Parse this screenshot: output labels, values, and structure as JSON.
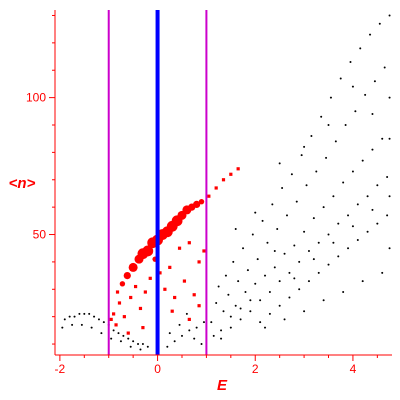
{
  "chart_data": {
    "type": "scatter",
    "title": "",
    "xlabel": "E",
    "ylabel": "<n>",
    "xlim": [
      -2.1,
      4.8
    ],
    "ylim": [
      6,
      132
    ],
    "x_ticks": [
      -2,
      0,
      2,
      4
    ],
    "y_ticks": [
      50,
      100
    ],
    "grid": false,
    "vertical_lines": [
      {
        "x": 0,
        "color": "#0000ff",
        "style": "thick"
      },
      {
        "x": -1,
        "color": "#cc00cc",
        "style": "thin"
      },
      {
        "x": 1,
        "color": "#cc00cc",
        "style": "thin"
      }
    ],
    "colors": {
      "axes": "#ff0000",
      "background_points": "#000000",
      "highlight_points": "#ff0000",
      "zero_line": "#0000ff",
      "window_lines": "#cc00cc"
    },
    "highlight_series": [
      {
        "x": -0.95,
        "y": 19,
        "size": 2
      },
      {
        "x": -0.9,
        "y": 21,
        "size": 2
      },
      {
        "x": -0.85,
        "y": 17,
        "size": 2
      },
      {
        "x": -0.82,
        "y": 29,
        "size": 2
      },
      {
        "x": -0.78,
        "y": 25,
        "size": 2
      },
      {
        "x": -0.72,
        "y": 32,
        "size": 3
      },
      {
        "x": -0.68,
        "y": 20,
        "size": 2
      },
      {
        "x": -0.62,
        "y": 35,
        "size": 4
      },
      {
        "x": -0.55,
        "y": 27,
        "size": 2
      },
      {
        "x": -0.5,
        "y": 38,
        "size": 5
      },
      {
        "x": -0.45,
        "y": 31,
        "size": 2
      },
      {
        "x": -0.38,
        "y": 41,
        "size": 5
      },
      {
        "x": -0.35,
        "y": 23,
        "size": 2
      },
      {
        "x": -0.3,
        "y": 43,
        "size": 6
      },
      {
        "x": -0.25,
        "y": 29,
        "size": 2
      },
      {
        "x": -0.2,
        "y": 44,
        "size": 6
      },
      {
        "x": -0.15,
        "y": 34,
        "size": 2
      },
      {
        "x": -0.1,
        "y": 47,
        "size": 6
      },
      {
        "x": -0.05,
        "y": 41,
        "size": 3
      },
      {
        "x": 0.0,
        "y": 48,
        "size": 6
      },
      {
        "x": 0.05,
        "y": 36,
        "size": 2
      },
      {
        "x": 0.1,
        "y": 50,
        "size": 6
      },
      {
        "x": 0.15,
        "y": 30,
        "size": 2
      },
      {
        "x": 0.2,
        "y": 51,
        "size": 6
      },
      {
        "x": 0.25,
        "y": 38,
        "size": 2
      },
      {
        "x": 0.3,
        "y": 53,
        "size": 6
      },
      {
        "x": 0.35,
        "y": 27,
        "size": 2
      },
      {
        "x": 0.4,
        "y": 55,
        "size": 6
      },
      {
        "x": 0.45,
        "y": 45,
        "size": 2
      },
      {
        "x": 0.5,
        "y": 57,
        "size": 5
      },
      {
        "x": 0.55,
        "y": 33,
        "size": 2
      },
      {
        "x": 0.6,
        "y": 59,
        "size": 5
      },
      {
        "x": 0.65,
        "y": 47,
        "size": 2
      },
      {
        "x": 0.7,
        "y": 60,
        "size": 4
      },
      {
        "x": 0.75,
        "y": 28,
        "size": 2
      },
      {
        "x": 0.8,
        "y": 61,
        "size": 4
      },
      {
        "x": 0.85,
        "y": 40,
        "size": 2
      },
      {
        "x": 0.9,
        "y": 62,
        "size": 3
      },
      {
        "x": 0.95,
        "y": 44,
        "size": 2
      },
      {
        "x": 1.05,
        "y": 64,
        "size": 2
      },
      {
        "x": 1.2,
        "y": 67,
        "size": 2
      },
      {
        "x": 1.35,
        "y": 70,
        "size": 2
      },
      {
        "x": 1.5,
        "y": 72,
        "size": 2
      },
      {
        "x": 1.65,
        "y": 74,
        "size": 2
      },
      {
        "x": -0.6,
        "y": 14,
        "size": 2
      },
      {
        "x": -0.3,
        "y": 16,
        "size": 2
      },
      {
        "x": 0.3,
        "y": 22,
        "size": 2
      },
      {
        "x": 0.65,
        "y": 19,
        "size": 2
      },
      {
        "x": 0.85,
        "y": 24,
        "size": 2
      }
    ],
    "background_series": [
      {
        "x": -1.9,
        "y": 19
      },
      {
        "x": -1.8,
        "y": 20
      },
      {
        "x": -1.7,
        "y": 20
      },
      {
        "x": -1.6,
        "y": 21
      },
      {
        "x": -1.5,
        "y": 21
      },
      {
        "x": -1.4,
        "y": 21
      },
      {
        "x": -1.3,
        "y": 20
      },
      {
        "x": -1.2,
        "y": 19
      },
      {
        "x": -1.1,
        "y": 18
      },
      {
        "x": -1.0,
        "y": 17
      },
      {
        "x": -0.9,
        "y": 15
      },
      {
        "x": -0.8,
        "y": 14
      },
      {
        "x": -0.7,
        "y": 13
      },
      {
        "x": -0.6,
        "y": 12
      },
      {
        "x": -0.5,
        "y": 11
      },
      {
        "x": -0.4,
        "y": 10
      },
      {
        "x": -0.3,
        "y": 10
      },
      {
        "x": -0.2,
        "y": 9
      },
      {
        "x": -1.95,
        "y": 16
      },
      {
        "x": -1.75,
        "y": 17
      },
      {
        "x": -1.55,
        "y": 17
      },
      {
        "x": -1.35,
        "y": 16
      },
      {
        "x": -1.15,
        "y": 14
      },
      {
        "x": -0.95,
        "y": 12
      },
      {
        "x": -0.75,
        "y": 11
      },
      {
        "x": -0.55,
        "y": 9
      },
      {
        "x": -0.35,
        "y": 8
      },
      {
        "x": 0.2,
        "y": 9
      },
      {
        "x": 0.35,
        "y": 11
      },
      {
        "x": 0.5,
        "y": 13
      },
      {
        "x": 0.65,
        "y": 15
      },
      {
        "x": 0.8,
        "y": 16
      },
      {
        "x": 0.95,
        "y": 18
      },
      {
        "x": 0.25,
        "y": 14
      },
      {
        "x": 0.45,
        "y": 17
      },
      {
        "x": 0.6,
        "y": 21
      },
      {
        "x": 0.75,
        "y": 12
      },
      {
        "x": 0.9,
        "y": 10
      },
      {
        "x": 1.1,
        "y": 18
      },
      {
        "x": 1.2,
        "y": 25
      },
      {
        "x": 1.25,
        "y": 31
      },
      {
        "x": 1.3,
        "y": 12
      },
      {
        "x": 1.35,
        "y": 22
      },
      {
        "x": 1.4,
        "y": 35
      },
      {
        "x": 1.45,
        "y": 28
      },
      {
        "x": 1.5,
        "y": 16
      },
      {
        "x": 1.55,
        "y": 40
      },
      {
        "x": 1.6,
        "y": 24
      },
      {
        "x": 1.65,
        "y": 33
      },
      {
        "x": 1.7,
        "y": 19
      },
      {
        "x": 1.75,
        "y": 45
      },
      {
        "x": 1.8,
        "y": 29
      },
      {
        "x": 1.85,
        "y": 37
      },
      {
        "x": 1.9,
        "y": 22
      },
      {
        "x": 1.95,
        "y": 50
      },
      {
        "x": 2.0,
        "y": 32
      },
      {
        "x": 2.05,
        "y": 41
      },
      {
        "x": 2.1,
        "y": 26
      },
      {
        "x": 2.15,
        "y": 55
      },
      {
        "x": 2.2,
        "y": 35
      },
      {
        "x": 2.25,
        "y": 47
      },
      {
        "x": 2.3,
        "y": 29
      },
      {
        "x": 2.35,
        "y": 61
      },
      {
        "x": 2.4,
        "y": 38
      },
      {
        "x": 2.45,
        "y": 52
      },
      {
        "x": 2.5,
        "y": 33
      },
      {
        "x": 2.55,
        "y": 67
      },
      {
        "x": 2.6,
        "y": 43
      },
      {
        "x": 2.65,
        "y": 57
      },
      {
        "x": 2.7,
        "y": 36
      },
      {
        "x": 2.75,
        "y": 72
      },
      {
        "x": 2.8,
        "y": 46
      },
      {
        "x": 2.85,
        "y": 62
      },
      {
        "x": 2.9,
        "y": 40
      },
      {
        "x": 2.95,
        "y": 79
      },
      {
        "x": 3.0,
        "y": 51
      },
      {
        "x": 3.05,
        "y": 68
      },
      {
        "x": 3.1,
        "y": 44
      },
      {
        "x": 3.15,
        "y": 86
      },
      {
        "x": 3.2,
        "y": 56
      },
      {
        "x": 3.25,
        "y": 73
      },
      {
        "x": 3.3,
        "y": 47
      },
      {
        "x": 3.35,
        "y": 93
      },
      {
        "x": 3.4,
        "y": 60
      },
      {
        "x": 3.45,
        "y": 78
      },
      {
        "x": 3.5,
        "y": 50
      },
      {
        "x": 3.55,
        "y": 100
      },
      {
        "x": 3.6,
        "y": 64
      },
      {
        "x": 3.65,
        "y": 84
      },
      {
        "x": 3.7,
        "y": 54
      },
      {
        "x": 3.75,
        "y": 107
      },
      {
        "x": 3.8,
        "y": 69
      },
      {
        "x": 3.85,
        "y": 90
      },
      {
        "x": 3.9,
        "y": 57
      },
      {
        "x": 3.95,
        "y": 113
      },
      {
        "x": 4.0,
        "y": 73
      },
      {
        "x": 4.05,
        "y": 95
      },
      {
        "x": 4.1,
        "y": 61
      },
      {
        "x": 4.15,
        "y": 118
      },
      {
        "x": 4.2,
        "y": 77
      },
      {
        "x": 4.25,
        "y": 101
      },
      {
        "x": 4.3,
        "y": 64
      },
      {
        "x": 4.35,
        "y": 123
      },
      {
        "x": 4.4,
        "y": 81
      },
      {
        "x": 4.45,
        "y": 106
      },
      {
        "x": 4.5,
        "y": 68
      },
      {
        "x": 4.55,
        "y": 127
      },
      {
        "x": 4.6,
        "y": 85
      },
      {
        "x": 4.65,
        "y": 111
      },
      {
        "x": 4.7,
        "y": 71
      },
      {
        "x": 4.75,
        "y": 130
      },
      {
        "x": 1.15,
        "y": 13
      },
      {
        "x": 1.3,
        "y": 15
      },
      {
        "x": 1.5,
        "y": 20
      },
      {
        "x": 1.7,
        "y": 23
      },
      {
        "x": 1.9,
        "y": 26
      },
      {
        "x": 2.1,
        "y": 18
      },
      {
        "x": 2.3,
        "y": 21
      },
      {
        "x": 2.5,
        "y": 24
      },
      {
        "x": 2.7,
        "y": 27
      },
      {
        "x": 2.9,
        "y": 30
      },
      {
        "x": 3.1,
        "y": 33
      },
      {
        "x": 3.3,
        "y": 36
      },
      {
        "x": 3.5,
        "y": 39
      },
      {
        "x": 3.7,
        "y": 42
      },
      {
        "x": 3.9,
        "y": 45
      },
      {
        "x": 4.1,
        "y": 48
      },
      {
        "x": 4.3,
        "y": 51
      },
      {
        "x": 4.5,
        "y": 54
      },
      {
        "x": 4.7,
        "y": 57
      },
      {
        "x": 2.2,
        "y": 16
      },
      {
        "x": 2.6,
        "y": 19
      },
      {
        "x": 3.0,
        "y": 22
      },
      {
        "x": 3.4,
        "y": 26
      },
      {
        "x": 3.8,
        "y": 29
      },
      {
        "x": 4.2,
        "y": 33
      },
      {
        "x": 4.6,
        "y": 36
      },
      {
        "x": 2.4,
        "y": 44
      },
      {
        "x": 2.8,
        "y": 34
      },
      {
        "x": 3.2,
        "y": 41
      },
      {
        "x": 3.6,
        "y": 47
      },
      {
        "x": 4.0,
        "y": 53
      },
      {
        "x": 4.4,
        "y": 59
      },
      {
        "x": 4.75,
        "y": 64
      },
      {
        "x": 4.75,
        "y": 45
      },
      {
        "x": 4.75,
        "y": 85
      },
      {
        "x": 4.75,
        "y": 100
      },
      {
        "x": 1.6,
        "y": 52
      },
      {
        "x": 2.0,
        "y": 58
      },
      {
        "x": 2.5,
        "y": 76
      },
      {
        "x": 3.0,
        "y": 82
      },
      {
        "x": 3.5,
        "y": 90
      },
      {
        "x": 4.0,
        "y": 104
      },
      {
        "x": 4.4,
        "y": 94
      }
    ]
  }
}
